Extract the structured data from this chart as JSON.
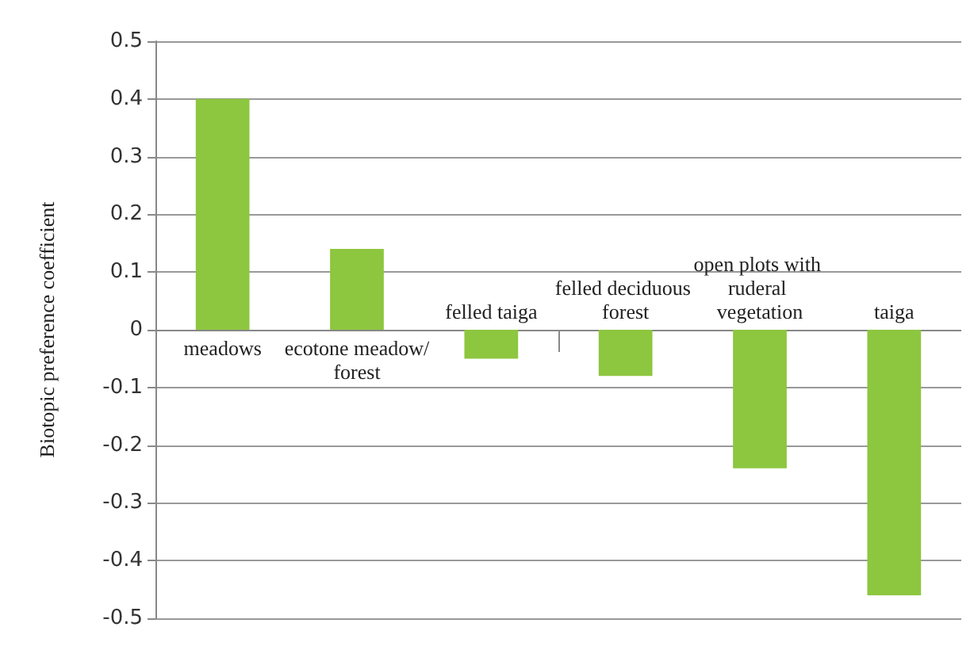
{
  "chart_data": {
    "type": "bar",
    "ylabel": "Biotopic preference coefficient",
    "categories": [
      "meadows",
      "ecotone meadow/forest",
      "felled taiga",
      "felled deciduous forest",
      "open plots with ruderal vegetation",
      "taiga"
    ],
    "values": [
      0.4,
      0.14,
      -0.05,
      -0.08,
      -0.24,
      -0.46
    ],
    "color": "#8dc63f",
    "ylim": [
      -0.5,
      0.5
    ],
    "yticks": [
      -0.5,
      -0.4,
      -0.3,
      -0.2,
      -0.1,
      0,
      0.1,
      0.2,
      0.3,
      0.4,
      0.5
    ],
    "grid": "y"
  }
}
